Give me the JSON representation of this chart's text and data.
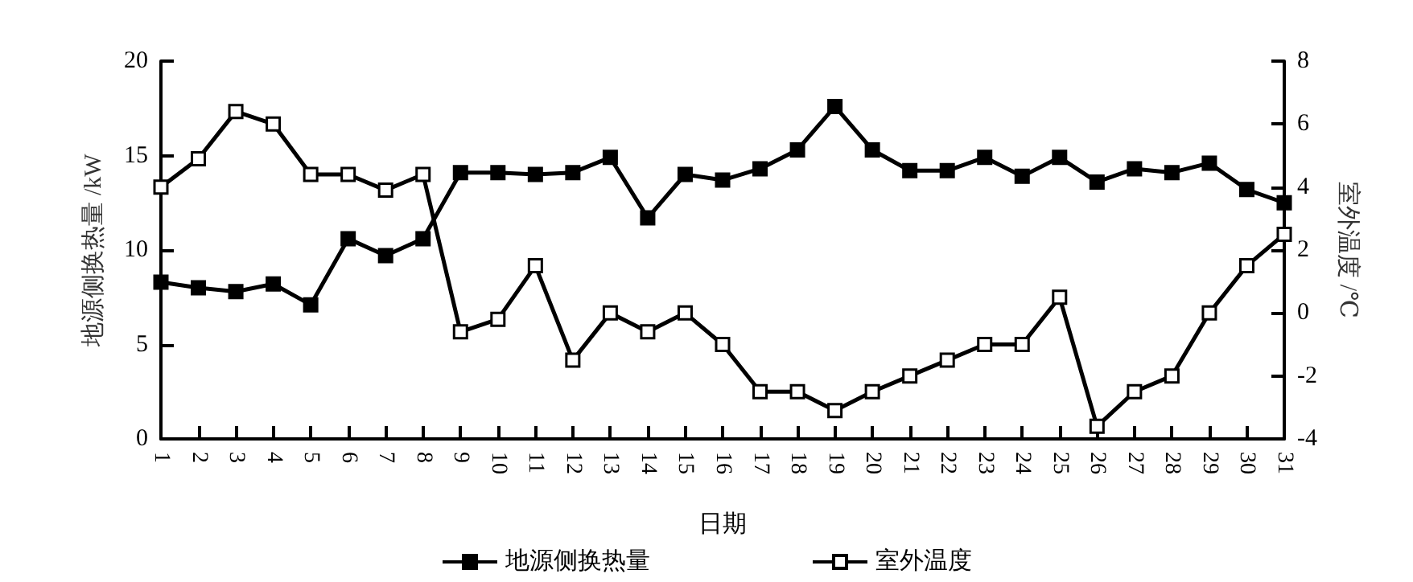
{
  "chart_data": {
    "type": "line",
    "xlabel": "日期",
    "ylabel": "地源侧换热量 /kW",
    "y2label": "室外温度 /℃",
    "categories": [
      "1",
      "2",
      "3",
      "4",
      "5",
      "6",
      "7",
      "8",
      "9",
      "10",
      "11",
      "12",
      "13",
      "14",
      "15",
      "16",
      "17",
      "18",
      "19",
      "20",
      "21",
      "22",
      "23",
      "24",
      "25",
      "26",
      "27",
      "28",
      "29",
      "30",
      "31"
    ],
    "series": [
      {
        "name": "地源侧换热量",
        "color": "#000000",
        "marker": "square",
        "values": [
          8.3,
          8.0,
          7.8,
          8.2,
          7.1,
          10.6,
          9.7,
          10.6,
          14.1,
          14.1,
          14.0,
          14.1,
          14.9,
          11.7,
          14.0,
          13.7,
          14.3,
          15.3,
          17.6,
          15.3,
          14.2,
          14.2,
          14.9,
          13.9,
          14.9,
          13.6,
          14.3,
          14.1,
          14.6,
          13.2,
          12.5
        ]
      },
      {
        "name": "室外温度",
        "color": "#000000",
        "marker": "square",
        "axis": "y2",
        "values": [
          4.0,
          4.9,
          6.4,
          6.0,
          4.4,
          4.4,
          3.9,
          4.4,
          -0.6,
          -0.2,
          1.5,
          -1.5,
          0.0,
          -0.6,
          0.0,
          -1.0,
          -2.5,
          -2.5,
          -3.1,
          -2.5,
          -2.0,
          -1.5,
          -1.0,
          -1.0,
          0.5,
          -3.6,
          -2.5,
          -2.0,
          0.0,
          1.5,
          2.5
        ]
      }
    ],
    "ylim": [
      0,
      20
    ],
    "yticks": [
      0,
      5,
      10,
      15,
      20
    ],
    "y2lim": [
      -4,
      8
    ],
    "y2ticks": [
      -4,
      -2,
      0,
      2,
      4,
      6,
      8
    ],
    "grid": false,
    "legend": "bottom",
    "line_style": "solid"
  }
}
